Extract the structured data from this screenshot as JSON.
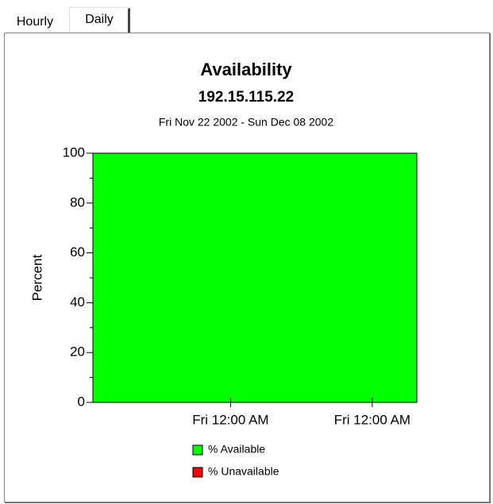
{
  "tabs": [
    "Hourly",
    "Daily"
  ],
  "chart_data": {
    "type": "area",
    "stacked": true,
    "title": "Availability",
    "subtitle": "192.15.115.22",
    "date_range": "Fri Nov 22 2002 - Sun Dec 08 2002",
    "y_label": "Percent",
    "x": [
      0,
      16
    ],
    "series": [
      {
        "name": "% Available",
        "color": "#00ff00",
        "values": [
          100,
          100
        ]
      },
      {
        "name": "% Unavailable",
        "color": "#ff0000",
        "values": [
          0,
          0
        ]
      }
    ],
    "xlim": [
      0,
      16
    ],
    "xticks": [
      {
        "value": 6.8,
        "label": "Fri 12:00 AM"
      },
      {
        "value": 13.8,
        "label": "Fri 12:00 AM"
      }
    ],
    "ylim": [
      0,
      100
    ],
    "yticks": [
      0,
      20,
      40,
      60,
      80,
      100
    ],
    "minor_yticks": [
      10,
      30,
      50,
      70,
      90
    ],
    "grid": false,
    "legend": "bottom"
  }
}
